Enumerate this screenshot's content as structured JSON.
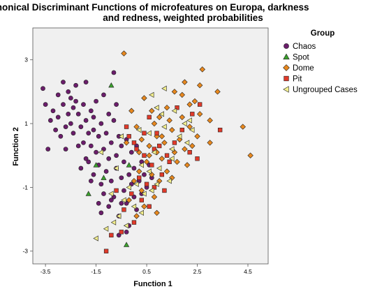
{
  "chart_data": {
    "type": "scatter",
    "title_line1": "Canonical Discriminant Functions of microfeatures on Europa, darkness",
    "title_line2": "and redness, weighted probabilities",
    "xlabel": "Function 1",
    "ylabel": "Function 2",
    "xlim": [
      -4.0,
      5.3
    ],
    "ylim": [
      -3.4,
      4.0
    ],
    "xticks": [
      -3.5,
      -1.5,
      0.5,
      2.5,
      4.5
    ],
    "xtick_labels": [
      "-3.5",
      "-1.5",
      "0.5",
      "2.5",
      "4.5"
    ],
    "yticks": [
      3,
      1,
      -1,
      -3
    ],
    "ytick_labels": [
      "3",
      "1",
      "-1",
      "-3"
    ],
    "grid": false,
    "plot_background": "#f0f0f0",
    "legend_title": "Group",
    "legend_position": "right",
    "series": [
      {
        "name": "Chaos",
        "marker": "circle",
        "color": "#6b1d6b"
      },
      {
        "name": "Spot",
        "marker": "triangle-up",
        "color": "#3aa02c"
      },
      {
        "name": "Dome",
        "marker": "diamond",
        "color": "#e8881e"
      },
      {
        "name": "Pit",
        "marker": "square",
        "color": "#e03a2a"
      },
      {
        "name": "Ungrouped Cases",
        "marker": "triangle-left",
        "color": "#f2ee8c"
      }
    ],
    "points": {
      "Chaos": [
        [
          -3.6,
          2.1
        ],
        [
          -3.5,
          1.6
        ],
        [
          -3.3,
          1.1
        ],
        [
          -3.2,
          1.4
        ],
        [
          -3.1,
          0.8
        ],
        [
          -3.0,
          1.9
        ],
        [
          -3.0,
          1.2
        ],
        [
          -2.9,
          0.6
        ],
        [
          -2.8,
          1.6
        ],
        [
          -2.8,
          2.3
        ],
        [
          -2.7,
          0.9
        ],
        [
          -2.6,
          1.3
        ],
        [
          -2.6,
          2.0
        ],
        [
          -2.5,
          1.8
        ],
        [
          -2.5,
          1.0
        ],
        [
          -2.4,
          0.7
        ],
        [
          -2.4,
          1.5
        ],
        [
          -2.3,
          2.2
        ],
        [
          -2.2,
          1.3
        ],
        [
          -2.2,
          0.3
        ],
        [
          -2.1,
          0.9
        ],
        [
          -2.0,
          1.6
        ],
        [
          -2.0,
          0.4
        ],
        [
          -1.9,
          1.1
        ],
        [
          -1.9,
          2.3
        ],
        [
          -1.8,
          0.7
        ],
        [
          -1.8,
          -0.2
        ],
        [
          -1.7,
          0.3
        ],
        [
          -1.7,
          1.4
        ],
        [
          -1.6,
          0.8
        ],
        [
          -1.6,
          -0.6
        ],
        [
          -1.5,
          0.1
        ],
        [
          -1.5,
          1.7
        ],
        [
          -1.4,
          -0.3
        ],
        [
          -1.4,
          0.6
        ],
        [
          -1.3,
          1.0
        ],
        [
          -1.3,
          -0.9
        ],
        [
          -1.2,
          0.2
        ],
        [
          -1.2,
          -1.2
        ],
        [
          -1.1,
          0.7
        ],
        [
          -1.1,
          -0.5
        ],
        [
          -1.0,
          1.3
        ],
        [
          -1.0,
          -0.1
        ],
        [
          -1.0,
          -1.6
        ],
        [
          -0.9,
          0.4
        ],
        [
          -0.9,
          -0.8
        ],
        [
          -0.8,
          1.1
        ],
        [
          -0.8,
          -1.3
        ],
        [
          -0.7,
          0.0
        ],
        [
          -0.7,
          -0.4
        ],
        [
          -0.6,
          0.6
        ],
        [
          -0.6,
          -1.9
        ],
        [
          -0.5,
          -0.7
        ],
        [
          -0.5,
          0.3
        ],
        [
          -0.4,
          -1.1
        ],
        [
          -0.4,
          -0.2
        ],
        [
          -0.3,
          -1.5
        ],
        [
          -0.3,
          0.5
        ],
        [
          -0.2,
          -0.6
        ],
        [
          -0.2,
          -2.2
        ],
        [
          -0.1,
          -0.9
        ],
        [
          -0.1,
          0.1
        ],
        [
          0.0,
          -1.3
        ],
        [
          0.0,
          -0.4
        ],
        [
          0.1,
          -1.7
        ],
        [
          0.1,
          0.3
        ],
        [
          0.2,
          -0.8
        ],
        [
          0.3,
          -1.2
        ],
        [
          0.3,
          -0.2
        ],
        [
          0.4,
          -0.6
        ],
        [
          0.5,
          -1.0
        ],
        [
          0.6,
          -0.3
        ],
        [
          0.7,
          -0.7
        ],
        [
          -2.1,
          -0.4
        ],
        [
          -1.7,
          -0.8
        ],
        [
          -1.3,
          -1.8
        ],
        [
          -0.9,
          -1.4
        ],
        [
          -0.5,
          -1.5
        ],
        [
          -0.3,
          -2.4
        ],
        [
          -1.2,
          1.9
        ],
        [
          -0.8,
          2.6
        ],
        [
          -3.4,
          0.2
        ],
        [
          -2.7,
          0.2
        ],
        [
          -1.9,
          -0.1
        ],
        [
          -1.4,
          -1.5
        ],
        [
          -0.6,
          -2.5
        ],
        [
          -2.3,
          1.7
        ],
        [
          -1.6,
          1.2
        ],
        [
          -0.7,
          1.6
        ]
      ],
      "Spot": [
        [
          -0.9,
          2.2
        ],
        [
          -1.8,
          -1.2
        ],
        [
          -1.2,
          -0.7
        ],
        [
          -1.5,
          -0.3
        ],
        [
          -0.3,
          -2.8
        ],
        [
          -0.2,
          -0.3
        ]
      ],
      "Dome": [
        [
          -0.4,
          3.2
        ],
        [
          2.7,
          2.7
        ],
        [
          4.3,
          0.9
        ],
        [
          4.6,
          0.0
        ],
        [
          3.3,
          2.0
        ],
        [
          2.6,
          2.2
        ],
        [
          1.9,
          1.9
        ],
        [
          1.6,
          2.0
        ],
        [
          1.3,
          1.5
        ],
        [
          2.2,
          1.6
        ],
        [
          2.6,
          1.3
        ],
        [
          3.0,
          1.1
        ],
        [
          1.0,
          1.2
        ],
        [
          0.8,
          1.0
        ],
        [
          1.5,
          0.8
        ],
        [
          2.2,
          0.9
        ],
        [
          2.5,
          0.6
        ],
        [
          1.8,
          0.5
        ],
        [
          1.2,
          0.4
        ],
        [
          0.9,
          0.6
        ],
        [
          0.6,
          0.3
        ],
        [
          0.3,
          0.5
        ],
        [
          0.1,
          0.9
        ],
        [
          -0.1,
          1.4
        ],
        [
          0.4,
          1.8
        ],
        [
          1.1,
          -0.1
        ],
        [
          1.6,
          0.1
        ],
        [
          2.0,
          0.2
        ],
        [
          0.5,
          -0.2
        ],
        [
          0.2,
          -0.5
        ],
        [
          0.7,
          -0.6
        ],
        [
          1.0,
          -0.8
        ],
        [
          0.3,
          -1.1
        ],
        [
          0.0,
          -0.8
        ],
        [
          -0.2,
          -1.4
        ],
        [
          0.4,
          -1.6
        ],
        [
          0.8,
          -1.3
        ],
        [
          1.3,
          -0.5
        ],
        [
          1.7,
          -0.2
        ],
        [
          2.3,
          0.3
        ],
        [
          0.6,
          0.0
        ],
        [
          0.9,
          0.1
        ],
        [
          1.4,
          1.1
        ],
        [
          1.9,
          1.2
        ],
        [
          2.4,
          1.7
        ],
        [
          0.2,
          0.1
        ],
        [
          -0.3,
          0.4
        ],
        [
          1.5,
          -0.7
        ],
        [
          0.1,
          -1.9
        ],
        [
          0.9,
          -1.8
        ],
        [
          1.1,
          0.6
        ],
        [
          0.7,
          1.4
        ],
        [
          2.0,
          2.3
        ],
        [
          3.0,
          0.4
        ],
        [
          2.1,
          -0.3
        ]
      ],
      "Pit": [
        [
          3.4,
          0.8
        ],
        [
          2.6,
          1.6
        ],
        [
          2.3,
          1.3
        ],
        [
          0.6,
          1.2
        ],
        [
          -0.3,
          0.9
        ],
        [
          0.1,
          0.2
        ],
        [
          0.4,
          0.0
        ],
        [
          0.7,
          -0.3
        ],
        [
          1.0,
          0.3
        ],
        [
          1.3,
          0.0
        ],
        [
          0.2,
          -0.7
        ],
        [
          0.5,
          -0.9
        ],
        [
          0.8,
          -1.0
        ],
        [
          -0.1,
          -1.2
        ],
        [
          0.3,
          -1.4
        ],
        [
          0.6,
          -1.6
        ],
        [
          -0.4,
          -1.7
        ],
        [
          0.0,
          -2.1
        ],
        [
          -0.5,
          -2.4
        ],
        [
          -0.9,
          -2.5
        ],
        [
          -1.1,
          -3.0
        ],
        [
          0.9,
          0.7
        ],
        [
          1.6,
          0.4
        ],
        [
          1.9,
          0.8
        ],
        [
          2.2,
          0.1
        ],
        [
          1.4,
          -0.2
        ],
        [
          1.1,
          -0.6
        ],
        [
          -0.2,
          0.6
        ],
        [
          0.4,
          0.7
        ],
        [
          1.2,
          -1.1
        ],
        [
          -0.7,
          -1.1
        ],
        [
          2.5,
          -0.1
        ],
        [
          0.0,
          0.4
        ],
        [
          0.8,
          0.2
        ],
        [
          1.7,
          1.5
        ]
      ],
      "Ungrouped Cases": [
        [
          0.9,
          1.5
        ],
        [
          0.6,
          0.7
        ],
        [
          1.2,
          0.9
        ],
        [
          1.8,
          0.6
        ],
        [
          2.1,
          0.4
        ],
        [
          1.5,
          0.2
        ],
        [
          0.8,
          0.1
        ],
        [
          0.3,
          -0.3
        ],
        [
          0.6,
          -0.5
        ],
        [
          1.0,
          -0.4
        ],
        [
          0.1,
          -0.9
        ],
        [
          -0.2,
          -1.0
        ],
        [
          0.4,
          -1.2
        ],
        [
          0.7,
          -1.1
        ],
        [
          -0.4,
          -1.4
        ],
        [
          0.0,
          -1.6
        ],
        [
          0.3,
          -1.8
        ],
        [
          -0.6,
          -1.9
        ],
        [
          -0.3,
          -2.2
        ],
        [
          -0.8,
          -2.1
        ],
        [
          -1.5,
          -2.6
        ],
        [
          -1.1,
          -2.3
        ],
        [
          -0.7,
          -0.4
        ],
        [
          -0.9,
          -1.2
        ],
        [
          -1.3,
          0.1
        ],
        [
          -0.5,
          0.6
        ],
        [
          0.2,
          0.8
        ],
        [
          1.1,
          1.3
        ],
        [
          1.6,
          1.4
        ],
        [
          2.0,
          1.0
        ],
        [
          2.3,
          0.8
        ],
        [
          1.4,
          -0.8
        ],
        [
          0.9,
          -0.9
        ],
        [
          1.2,
          2.1
        ],
        [
          0.7,
          1.9
        ],
        [
          1.5,
          -0.1
        ],
        [
          2.2,
          1.1
        ]
      ]
    }
  }
}
